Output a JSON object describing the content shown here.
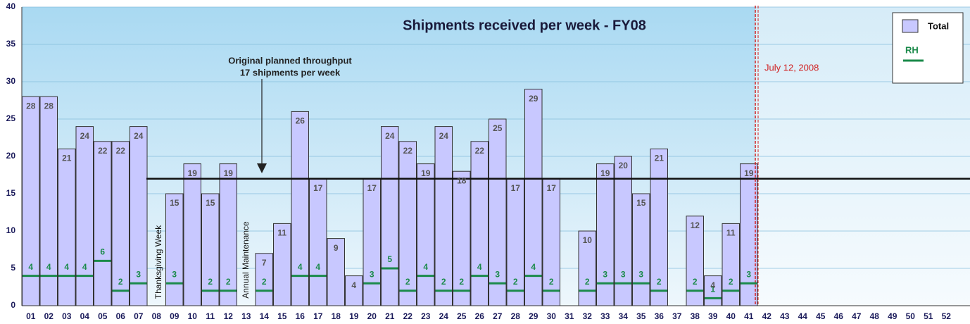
{
  "chart_data": {
    "type": "bar",
    "title": "Shipments received per week - FY08",
    "categories": [
      "01",
      "02",
      "03",
      "04",
      "05",
      "06",
      "07",
      "08",
      "09",
      "10",
      "11",
      "12",
      "13",
      "14",
      "15",
      "16",
      "17",
      "18",
      "19",
      "20",
      "21",
      "22",
      "23",
      "24",
      "25",
      "26",
      "27",
      "28",
      "29",
      "30",
      "31",
      "32",
      "33",
      "34",
      "35",
      "36",
      "37",
      "38",
      "39",
      "40",
      "41",
      "42",
      "43",
      "44",
      "45",
      "46",
      "47",
      "48",
      "49",
      "50",
      "51",
      "52"
    ],
    "series": [
      {
        "name": "Total",
        "color": "#c8c8ff",
        "values": [
          28,
          28,
          21,
          24,
          22,
          22,
          24,
          null,
          15,
          19,
          15,
          19,
          null,
          7,
          11,
          26,
          17,
          9,
          4,
          17,
          24,
          22,
          19,
          24,
          18,
          22,
          25,
          17,
          29,
          17,
          null,
          10,
          19,
          20,
          15,
          21,
          null,
          12,
          4,
          11,
          19,
          null,
          null,
          null,
          null,
          null,
          null,
          null,
          null,
          null,
          null,
          null
        ]
      },
      {
        "name": "RH",
        "color": "#1a8a4a",
        "values": [
          4,
          4,
          4,
          4,
          6,
          2,
          3,
          null,
          3,
          null,
          2,
          2,
          null,
          2,
          null,
          4,
          4,
          null,
          null,
          3,
          5,
          2,
          4,
          2,
          2,
          4,
          3,
          2,
          4,
          2,
          null,
          2,
          3,
          3,
          3,
          2,
          null,
          2,
          1,
          2,
          3,
          null,
          null,
          null,
          null,
          null,
          null,
          null,
          null,
          null,
          null,
          null
        ]
      }
    ],
    "ylim": [
      0,
      40
    ],
    "yticks": [
      0,
      5,
      10,
      15,
      20,
      25,
      30,
      35,
      40
    ],
    "grid": true,
    "legend": "upper right",
    "target": 17,
    "annotations": [
      "Original planned throughput",
      "17 shipments per week",
      "July 12, 2008",
      "Thanksgiving Week",
      "Annual Maintenance"
    ]
  }
}
